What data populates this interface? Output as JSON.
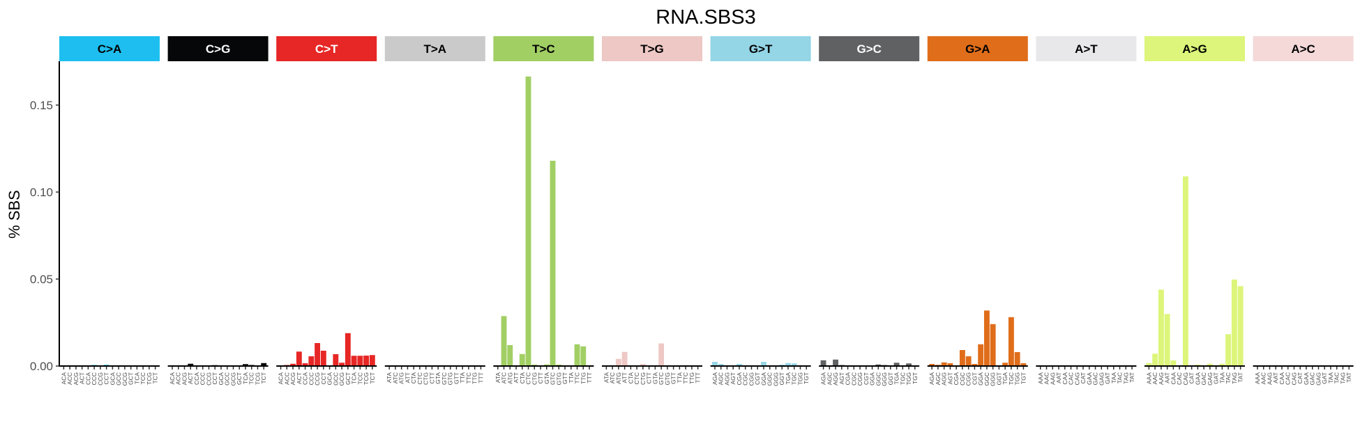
{
  "chart_data": {
    "type": "bar",
    "title": "RNA.SBS3",
    "xlabel": "",
    "ylabel": "% SBS",
    "ylim": [
      0,
      0.175
    ],
    "yticks": [
      "0.00",
      "0.05",
      "0.10",
      "0.15"
    ],
    "ytick_values": [
      0.0,
      0.05,
      0.1,
      0.15
    ],
    "grid": false,
    "legend": null,
    "facets": [
      {
        "name": "C>A",
        "strip_color": "#1ebff0",
        "text_color": "#000000",
        "categories": [
          "ACA",
          "ACC",
          "ACG",
          "ACT",
          "CCA",
          "CCC",
          "CCG",
          "CCT",
          "GCA",
          "GCC",
          "GCG",
          "GCT",
          "TCA",
          "TCC",
          "TCG",
          "TCT"
        ],
        "values": [
          0.0001,
          0.0004,
          0.0001,
          0.0001,
          0.0001,
          0.0006,
          0.0001,
          0.0007,
          0.0001,
          0.0004,
          0.0001,
          0.0001,
          0.0001,
          0.0001,
          0.0001,
          0.0001
        ]
      },
      {
        "name": "C>G",
        "strip_color": "#050708",
        "text_color": "#ffffff",
        "categories": [
          "ACA",
          "ACC",
          "ACG",
          "ACT",
          "CCA",
          "CCC",
          "CCG",
          "CCT",
          "GCA",
          "GCC",
          "GCG",
          "GCT",
          "TCA",
          "TCC",
          "TCG",
          "TCT"
        ],
        "values": [
          0.0001,
          0.0001,
          0.0001,
          0.0013,
          0.0001,
          0.0001,
          0.0001,
          0.0005,
          0.0001,
          0.0001,
          0.0001,
          0.0001,
          0.0011,
          0.0006,
          0.0001,
          0.0017
        ]
      },
      {
        "name": "C>T",
        "strip_color": "#e62725",
        "text_color": "#ffffff",
        "categories": [
          "ACA",
          "ACC",
          "ACG",
          "ACT",
          "CCA",
          "CCC",
          "CCG",
          "CCT",
          "GCA",
          "GCC",
          "GCG",
          "GCT",
          "TCA",
          "TCC",
          "TCG",
          "TCT"
        ],
        "values": [
          0.0004,
          0.0006,
          0.0013,
          0.0083,
          0.0016,
          0.0056,
          0.0132,
          0.0088,
          0.0,
          0.0068,
          0.0019,
          0.0189,
          0.0059,
          0.0059,
          0.006,
          0.0063
        ]
      },
      {
        "name": "T>A",
        "strip_color": "#cbcacb",
        "text_color": "#000000",
        "categories": [
          "ATA",
          "ATC",
          "ATG",
          "ATT",
          "CTA",
          "CTC",
          "CTG",
          "CTT",
          "GTA",
          "GTC",
          "GTG",
          "GTT",
          "TTA",
          "TTC",
          "TTG",
          "TTT"
        ],
        "values": [
          0,
          0,
          0,
          0,
          0,
          0,
          0,
          0,
          0,
          0,
          0,
          0,
          0,
          0,
          0,
          0
        ]
      },
      {
        "name": "T>C",
        "strip_color": "#a1cf64",
        "text_color": "#000000",
        "categories": [
          "ATA",
          "ATC",
          "ATG",
          "ATT",
          "CTA",
          "CTC",
          "CTG",
          "CTT",
          "GTA",
          "GTC",
          "GTG",
          "GTT",
          "TTA",
          "TTC",
          "TTG",
          "TTT"
        ],
        "values": [
          0.0,
          0.0287,
          0.012,
          0.0,
          0.0069,
          0.1664,
          0.0008,
          0.0,
          0.0009,
          0.118,
          0.0008,
          0.0,
          0.0,
          0.0125,
          0.0113,
          0.0
        ]
      },
      {
        "name": "T>G",
        "strip_color": "#edc8c5",
        "text_color": "#000000",
        "categories": [
          "ATA",
          "ATC",
          "ATG",
          "ATT",
          "CTA",
          "CTC",
          "CTG",
          "CTT",
          "GTA",
          "GTC",
          "GTG",
          "GTT",
          "TTA",
          "TTC",
          "TTG",
          "TTT"
        ],
        "values": [
          0.0,
          0.0,
          0.0041,
          0.0081,
          0.0,
          0.0,
          0.0012,
          0.0,
          0.0,
          0.013,
          0.0,
          0.0,
          0.0,
          0.0,
          0.0,
          0.0
        ]
      },
      {
        "name": "G>T",
        "strip_color": "#94d5e6",
        "text_color": "#000000",
        "categories": [
          "AGA",
          "AGC",
          "AGG",
          "AGT",
          "CGA",
          "CGC",
          "CGG",
          "CGT",
          "GGA",
          "GGC",
          "GGG",
          "GGT",
          "TGA",
          "TGC",
          "TGG",
          "TGT"
        ],
        "values": [
          0.0024,
          0.0012,
          0.0002,
          0.0003,
          0.0012,
          0.0002,
          0.0002,
          0.0003,
          0.0024,
          0.0003,
          0.0002,
          0.0008,
          0.0017,
          0.0015,
          0.0004,
          0.0002
        ]
      },
      {
        "name": "G>C",
        "strip_color": "#5f6163",
        "text_color": "#ffffff",
        "categories": [
          "AGA",
          "AGC",
          "AGG",
          "AGT",
          "CGA",
          "CGC",
          "CGG",
          "CGT",
          "GGA",
          "GGC",
          "GGG",
          "GGT",
          "TGA",
          "TGC",
          "TGG",
          "TGT"
        ],
        "values": [
          0.0033,
          0.0,
          0.0037,
          0.0006,
          0.0002,
          0.0002,
          0.0002,
          0.0002,
          0.0004,
          0.0009,
          0.0006,
          0.0002,
          0.0019,
          0.0002,
          0.0015,
          0.0002
        ]
      },
      {
        "name": "G>A",
        "strip_color": "#e06d1a",
        "text_color": "#000000",
        "categories": [
          "AGA",
          "AGC",
          "AGG",
          "AGT",
          "CGA",
          "CGC",
          "CGG",
          "CGT",
          "GGA",
          "GGC",
          "GGG",
          "GGT",
          "TGA",
          "TGC",
          "TGG",
          "TGT"
        ],
        "values": [
          0.0012,
          0.0007,
          0.0021,
          0.0016,
          0.0004,
          0.0092,
          0.0056,
          0.0012,
          0.0125,
          0.0319,
          0.0241,
          0.0,
          0.0019,
          0.0281,
          0.008,
          0.0016
        ]
      },
      {
        "name": "A>T",
        "strip_color": "#e8e7ea",
        "text_color": "#000000",
        "categories": [
          "AAA",
          "AAC",
          "AAG",
          "AAT",
          "CAA",
          "CAC",
          "CAG",
          "CAT",
          "GAA",
          "GAC",
          "GAG",
          "GAT",
          "TAA",
          "TAC",
          "TAG",
          "TAT"
        ],
        "values": [
          0,
          0,
          0,
          0,
          0,
          0,
          0,
          0,
          0,
          0,
          0,
          0,
          0,
          0,
          0,
          0
        ]
      },
      {
        "name": "A>G",
        "strip_color": "#dcf57a",
        "text_color": "#000000",
        "categories": [
          "AAA",
          "AAC",
          "AAG",
          "AAT",
          "CAA",
          "CAC",
          "CAG",
          "CAT",
          "GAA",
          "GAC",
          "GAG",
          "GAT",
          "TAA",
          "TAC",
          "TAG",
          "TAT"
        ],
        "values": [
          0.0017,
          0.0071,
          0.0439,
          0.0299,
          0.0032,
          0.0,
          0.109,
          0.0004,
          0.0008,
          0.0,
          0.0013,
          0.0,
          0.0013,
          0.0183,
          0.0497,
          0.0459
        ]
      },
      {
        "name": "A>C",
        "strip_color": "#f4d9d8",
        "text_color": "#000000",
        "categories": [
          "AAA",
          "AAC",
          "AAG",
          "AAT",
          "CAA",
          "CAC",
          "CAG",
          "CAT",
          "GAA",
          "GAC",
          "GAG",
          "GAT",
          "TAA",
          "TAC",
          "TAG",
          "TAT"
        ],
        "values": [
          0,
          0,
          0,
          0,
          0,
          0,
          0,
          0,
          0,
          0,
          0,
          0,
          0,
          0,
          0,
          0
        ]
      }
    ]
  }
}
